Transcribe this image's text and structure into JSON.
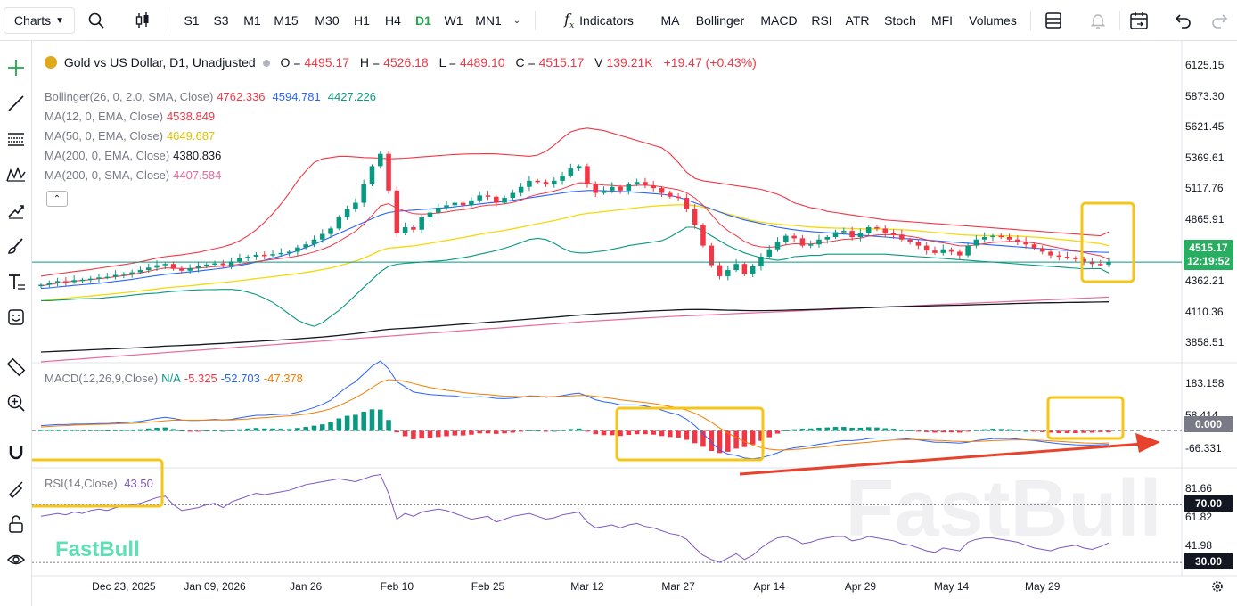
{
  "toolbar": {
    "charts_label": "Charts",
    "timeframes": [
      "S1",
      "S3",
      "M1",
      "M15",
      "M30",
      "H1",
      "H4",
      "D1",
      "W1",
      "MN1"
    ],
    "active_timeframe": "D1",
    "indicators_label": "Indicators",
    "indicator_shortcuts": [
      "MA",
      "Bollinger",
      "MACD",
      "RSI",
      "ATR",
      "Stoch",
      "MFI",
      "Volumes"
    ]
  },
  "symbol": {
    "title": "Gold vs US Dollar, D1, Unadjusted",
    "o_label": "O =",
    "o": "4495.17",
    "h_label": "H =",
    "h": "4526.18",
    "l_label": "L =",
    "l": "4489.10",
    "c_label": "C =",
    "c": "4515.17",
    "v_label": "V",
    "v": "139.21K",
    "change": "+19.47 (+0.43%)"
  },
  "indicators": [
    {
      "label": "Bollinger(26, 0, 2.0, SMA, Close)",
      "values": [
        "4762.336",
        "4594.781",
        "4427.226"
      ],
      "colors": [
        "#f23645",
        "#2962ff",
        "#089981"
      ]
    },
    {
      "label": "MA(12, 0, EMA, Close)",
      "values": [
        "4538.849"
      ],
      "colors": [
        "#f23645"
      ]
    },
    {
      "label": "MA(50, 0, EMA, Close)",
      "values": [
        "4649.687"
      ],
      "colors": [
        "#f5d90a"
      ]
    },
    {
      "label": "MA(200, 0, EMA, Close)",
      "values": [
        "4380.836"
      ],
      "colors": [
        "#131722"
      ]
    },
    {
      "label": "MA(200, 0, SMA, Close)",
      "values": [
        "4407.584"
      ],
      "colors": [
        "#e8699b"
      ]
    }
  ],
  "macd_legend": {
    "label": "MACD(12,26,9,Close)",
    "values": [
      "N/A",
      "-5.325",
      "-52.703",
      "-47.378"
    ],
    "colors": [
      "#089981",
      "#f23645",
      "#2962ff",
      "#f57c00"
    ]
  },
  "rsi_legend": {
    "label": "RSI(14,Close)",
    "value": "43.50"
  },
  "price_axis": [
    "6125.15",
    "5873.30",
    "5621.45",
    "5369.61",
    "5117.76",
    "4865.91",
    "4614.06",
    "4362.21",
    "4110.36",
    "3858.51"
  ],
  "price_tag": {
    "price": "4515.17",
    "time": "12:19:52"
  },
  "macd_axis": [
    "183.158",
    "58.414",
    "-66.331"
  ],
  "macd_tag": "0.000",
  "rsi_axis": [
    "81.66",
    "61.82",
    "41.98"
  ],
  "rsi_tags": [
    "70.00",
    "30.00"
  ],
  "date_axis": [
    "Dec 23, 2025",
    "Jan 09, 2026",
    "Jan 26",
    "Feb 10",
    "Feb 25",
    "Mar 12",
    "Mar 27",
    "Apr 14",
    "Apr 29",
    "May 14",
    "May 29"
  ],
  "watermark": "FastBull",
  "colors": {
    "up": "#089981",
    "down": "#f23645",
    "price_line": "#089981",
    "highlight": "#f5c518",
    "arrow": "#e8412c"
  },
  "chart_data": {
    "type": "candlestick",
    "title": "Gold vs US Dollar, D1, Unadjusted",
    "price_range": [
      3700,
      6250
    ],
    "macd_range": [
      -140,
      260
    ],
    "rsi_range": [
      22,
      95
    ],
    "close": [
      4330,
      4345,
      4360,
      4352,
      4368,
      4372,
      4380,
      4390,
      4395,
      4410,
      4420,
      4432,
      4450,
      4470,
      4490,
      4500,
      4460,
      4445,
      4465,
      4480,
      4495,
      4505,
      4490,
      4520,
      4545,
      4560,
      4575,
      4570,
      4580,
      4590,
      4600,
      4635,
      4660,
      4700,
      4745,
      4790,
      4880,
      4950,
      5000,
      5150,
      5300,
      5400,
      5100,
      4750,
      4800,
      4780,
      4880,
      4920,
      4960,
      4980,
      5000,
      4980,
      5020,
      5060,
      5050,
      5000,
      5040,
      5080,
      5130,
      5180,
      5170,
      5150,
      5180,
      5220,
      5280,
      5300,
      5150,
      5080,
      5100,
      5130,
      5100,
      5150,
      5170,
      5140,
      5120,
      5080,
      5050,
      5040,
      4950,
      4820,
      4650,
      4490,
      4400,
      4450,
      4500,
      4420,
      4480,
      4560,
      4620,
      4680,
      4730,
      4710,
      4650,
      4660,
      4700,
      4720,
      4760,
      4770,
      4720,
      4750,
      4800,
      4790,
      4750,
      4740,
      4700,
      4680,
      4650,
      4610,
      4590,
      4620,
      4600,
      4570,
      4650,
      4700,
      4720,
      4730,
      4720,
      4700,
      4680,
      4660,
      4630,
      4600,
      4570,
      4560,
      4550,
      4540,
      4520,
      4500,
      4495,
      4515
    ],
    "ema12": [
      4320,
      4332,
      4344,
      4352,
      4360,
      4366,
      4372,
      4380,
      4387,
      4396,
      4404,
      4414,
      4426,
      4440,
      4455,
      4468,
      4466,
      4462,
      4463,
      4466,
      4472,
      4479,
      4481,
      4488,
      4498,
      4509,
      4520,
      4528,
      4537,
      4545,
      4553,
      4565,
      4580,
      4598,
      4621,
      4647,
      4684,
      4725,
      4767,
      4825,
      4896,
      4974,
      4993,
      4955,
      4931,
      4911,
      4908,
      4910,
      4917,
      4925,
      4937,
      4943,
      4955,
      4971,
      4981,
      4983,
      4991,
      5003,
      5022,
      5049,
      5068,
      5081,
      5096,
      5115,
      5140,
      5164,
      5163,
      5151,
      5144,
      5142,
      5135,
      5137,
      5143,
      5143,
      5140,
      5130,
      5118,
      5107,
      5082,
      5040,
      4981,
      4905,
      4828,
      4772,
      4730,
      4684,
      4654,
      4640,
      4636,
      4642,
      4656,
      4665,
      4663,
      4664,
      4671,
      4679,
      4690,
      4702,
      4705,
      4712,
      4727,
      4737,
      4739,
      4740,
      4734,
      4725,
      4714,
      4698,
      4682,
      4673,
      4662,
      4648,
      4648,
      4656,
      4666,
      4676,
      4681,
      4685,
      4684,
      4680,
      4672,
      4661,
      4646,
      4632,
      4620,
      4608,
      4595,
      4580,
      4567,
      4538
    ],
    "ema50": [
      4200,
      4206,
      4213,
      4219,
      4226,
      4232,
      4238,
      4245,
      4251,
      4258,
      4265,
      4272,
      4280,
      4288,
      4296,
      4305,
      4311,
      4316,
      4322,
      4329,
      4336,
      4343,
      4349,
      4356,
      4364,
      4372,
      4381,
      4388,
      4396,
      4404,
      4412,
      4421,
      4431,
      4442,
      4454,
      4467,
      4484,
      4503,
      4523,
      4548,
      4578,
      4610,
      4630,
      4635,
      4642,
      4648,
      4658,
      4669,
      4681,
      4693,
      4705,
      4716,
      4729,
      4742,
      4754,
      4764,
      4775,
      4787,
      4800,
      4815,
      4829,
      4841,
      4855,
      4870,
      4886,
      4903,
      4913,
      4920,
      4928,
      4936,
      4943,
      4951,
      4960,
      4967,
      4973,
      4978,
      4981,
      4984,
      4983,
      4977,
      4964,
      4946,
      4926,
      4907,
      4891,
      4871,
      4854,
      4842,
      4832,
      4825,
      4820,
      4815,
      4808,
      4802,
      4798,
      4795,
      4793,
      4792,
      4789,
      4787,
      4787,
      4787,
      4785,
      4783,
      4780,
      4776,
      4771,
      4764,
      4757,
      4752,
      4746,
      4739,
      4735,
      4733,
      4732,
      4732,
      4731,
      4729,
      4727,
      4724,
      4720,
      4715,
      4709,
      4702,
      4696,
      4689,
      4682,
      4674,
      4666,
      4650
    ],
    "ema200": [
      3780,
      3783,
      3786,
      3789,
      3792,
      3795,
      3798,
      3801,
      3804,
      3807,
      3810,
      3813,
      3816,
      3820,
      3824,
      3828,
      3831,
      3834,
      3837,
      3840,
      3844,
      3848,
      3851,
      3855,
      3859,
      3863,
      3867,
      3871,
      3875,
      3879,
      3883,
      3888,
      3893,
      3898,
      3903,
      3909,
      3916,
      3923,
      3930,
      3939,
      3949,
      3959,
      3966,
      3970,
      3974,
      3978,
      3983,
      3988,
      3993,
      3998,
      4003,
      4008,
      4013,
      4018,
      4023,
      4028,
      4033,
      4038,
      4043,
      4049,
      4054,
      4059,
      4064,
      4070,
      4076,
      4082,
      4086,
      4090,
      4094,
      4098,
      4101,
      4105,
      4109,
      4113,
      4116,
      4119,
      4122,
      4125,
      4127,
      4128,
      4128,
      4126,
      4124,
      4122,
      4121,
      4119,
      4118,
      4118,
      4119,
      4120,
      4122,
      4124,
      4125,
      4127,
      4129,
      4131,
      4134,
      4136,
      4138,
      4140,
      4143,
      4146,
      4148,
      4150,
      4152,
      4154,
      4155,
      4157,
      4158,
      4160,
      4162,
      4163,
      4165,
      4167,
      4169,
      4171,
      4173,
      4175,
      4177,
      4179,
      4181,
      4182,
      4183,
      4184,
      4185,
      4186,
      4187,
      4188,
      4189,
      4190
    ],
    "sma200": [
      3700,
      3705,
      3710,
      3715,
      3720,
      3725,
      3730,
      3735,
      3740,
      3745,
      3750,
      3755,
      3760,
      3765,
      3770,
      3775,
      3780,
      3785,
      3790,
      3795,
      3800,
      3805,
      3810,
      3815,
      3820,
      3825,
      3830,
      3835,
      3840,
      3845,
      3850,
      3855,
      3860,
      3865,
      3870,
      3875,
      3880,
      3885,
      3890,
      3895,
      3900,
      3905,
      3910,
      3915,
      3920,
      3925,
      3930,
      3935,
      3940,
      3945,
      3950,
      3955,
      3960,
      3965,
      3970,
      3975,
      3980,
      3985,
      3990,
      3995,
      4000,
      4005,
      4010,
      4015,
      4020,
      4025,
      4030,
      4034,
      4038,
      4042,
      4046,
      4050,
      4054,
      4058,
      4062,
      4066,
      4070,
      4073,
      4076,
      4079,
      4082,
      4085,
      4088,
      4091,
      4094,
      4097,
      4100,
      4103,
      4106,
      4109,
      4112,
      4115,
      4118,
      4121,
      4124,
      4127,
      4130,
      4133,
      4136,
      4139,
      4142,
      4145,
      4148,
      4151,
      4154,
      4157,
      4160,
      4163,
      4166,
      4169,
      4172,
      4175,
      4178,
      4181,
      4184,
      4187,
      4190,
      4193,
      4196,
      4199,
      4202,
      4205,
      4208,
      4211,
      4214,
      4217,
      4220,
      4223,
      4226,
      4229
    ],
    "bb_upper": [
      4400,
      4410,
      4420,
      4428,
      4438,
      4445,
      4455,
      4465,
      4475,
      4485,
      4495,
      4505,
      4518,
      4532,
      4548,
      4560,
      4568,
      4575,
      4585,
      4595,
      4610,
      4625,
      4640,
      4660,
      4690,
      4730,
      4780,
      4840,
      4910,
      4990,
      5080,
      5180,
      5260,
      5330,
      5360,
      5370,
      5380,
      5380,
      5375,
      5370,
      5368,
      5365,
      5360,
      5362,
      5365,
      5370,
      5375,
      5380,
      5385,
      5390,
      5395,
      5398,
      5400,
      5400,
      5402,
      5400,
      5395,
      5390,
      5385,
      5380,
      5390,
      5420,
      5470,
      5530,
      5580,
      5600,
      5610,
      5600,
      5590,
      5570,
      5550,
      5530,
      5510,
      5490,
      5470,
      5450,
      5400,
      5330,
      5250,
      5200,
      5180,
      5170,
      5160,
      5150,
      5140,
      5130,
      5120,
      5110,
      5090,
      5070,
      5040,
      5000,
      4980,
      4960,
      4950,
      4930,
      4920,
      4910,
      4900,
      4890,
      4880,
      4870,
      4860,
      4855,
      4850,
      4845,
      4840,
      4835,
      4830,
      4825,
      4820,
      4815,
      4810,
      4805,
      4800,
      4795,
      4790,
      4785,
      4780,
      4775,
      4770,
      4765,
      4760,
      4755,
      4750,
      4745,
      4740,
      4735,
      4730,
      4762
    ],
    "bb_mid": [
      4300,
      4305,
      4312,
      4318,
      4325,
      4330,
      4336,
      4342,
      4350,
      4358,
      4366,
      4375,
      4385,
      4395,
      4405,
      4415,
      4422,
      4428,
      4435,
      4442,
      4450,
      4458,
      4466,
      4476,
      4488,
      4500,
      4515,
      4530,
      4548,
      4565,
      4585,
      4610,
      4635,
      4660,
      4690,
      4720,
      4750,
      4780,
      4810,
      4840,
      4870,
      4900,
      4920,
      4930,
      4935,
      4940,
      4945,
      4950,
      4955,
      4960,
      4968,
      4975,
      4982,
      4990,
      4998,
      5005,
      5012,
      5020,
      5030,
      5040,
      5050,
      5060,
      5070,
      5080,
      5090,
      5095,
      5100,
      5100,
      5098,
      5095,
      5092,
      5090,
      5085,
      5080,
      5075,
      5070,
      5060,
      5045,
      5025,
      5000,
      4975,
      4950,
      4925,
      4900,
      4880,
      4860,
      4845,
      4830,
      4815,
      4800,
      4790,
      4780,
      4772,
      4765,
      4760,
      4755,
      4750,
      4745,
      4740,
      4735,
      4730,
      4725,
      4720,
      4715,
      4710,
      4705,
      4700,
      4695,
      4690,
      4685,
      4680,
      4675,
      4670,
      4665,
      4660,
      4655,
      4650,
      4645,
      4640,
      4635,
      4630,
      4625,
      4620,
      4615,
      4610,
      4605,
      4600,
      4598,
      4596,
      4595
    ],
    "bb_lower": [
      4200,
      4200,
      4204,
      4208,
      4212,
      4215,
      4217,
      4219,
      4225,
      4231,
      4237,
      4245,
      4252,
      4258,
      4262,
      4270,
      4276,
      4281,
      4285,
      4289,
      4290,
      4291,
      4292,
      4292,
      4286,
      4270,
      4250,
      4220,
      4186,
      4140,
      4090,
      4040,
      4010,
      3990,
      4020,
      4070,
      4120,
      4180,
      4245,
      4310,
      4372,
      4435,
      4480,
      4498,
      4505,
      4510,
      4515,
      4520,
      4525,
      4530,
      4541,
      4552,
      4564,
      4580,
      4594,
      4610,
      4629,
      4650,
      4675,
      4700,
      4710,
      4700,
      4670,
      4630,
      4600,
      4590,
      4590,
      4600,
      4606,
      4620,
      4634,
      4650,
      4660,
      4670,
      4680,
      4690,
      4720,
      4760,
      4800,
      4800,
      4770,
      4730,
      4690,
      4650,
      4620,
      4590,
      4570,
      4550,
      4540,
      4530,
      4540,
      4560,
      4564,
      4570,
      4570,
      4580,
      4580,
      4580,
      4580,
      4580,
      4580,
      4580,
      4580,
      4575,
      4570,
      4565,
      4560,
      4555,
      4550,
      4545,
      4540,
      4535,
      4530,
      4525,
      4520,
      4515,
      4510,
      4505,
      4500,
      4495,
      4490,
      4485,
      4480,
      4475,
      4470,
      4465,
      4460,
      4461,
      4462,
      4427
    ],
    "macd": [
      20,
      22,
      24,
      24,
      26,
      26,
      27,
      28,
      28,
      30,
      32,
      34,
      37,
      42,
      48,
      52,
      48,
      42,
      40,
      40,
      42,
      44,
      42,
      44,
      50,
      55,
      60,
      60,
      62,
      64,
      65,
      72,
      80,
      90,
      102,
      118,
      145,
      170,
      190,
      220,
      250,
      270,
      240,
      190,
      170,
      150,
      145,
      140,
      138,
      136,
      135,
      130,
      130,
      132,
      130,
      125,
      124,
      126,
      130,
      135,
      134,
      130,
      132,
      136,
      142,
      146,
      134,
      120,
      112,
      108,
      100,
      100,
      100,
      96,
      90,
      80,
      70,
      62,
      45,
      20,
      -10,
      -45,
      -75,
      -90,
      -95,
      -105,
      -108,
      -104,
      -96,
      -85,
      -72,
      -66,
      -62,
      -58,
      -52,
      -48,
      -42,
      -38,
      -38,
      -35,
      -30,
      -28,
      -28,
      -28,
      -30,
      -32,
      -35,
      -40,
      -44,
      -44,
      -46,
      -48,
      -44,
      -38,
      -34,
      -30,
      -30,
      -30,
      -32,
      -35,
      -38,
      -42,
      -46,
      -50,
      -52,
      -54,
      -55,
      -55,
      -54,
      -53
    ],
    "signal": [
      15,
      17,
      19,
      20,
      22,
      23,
      24,
      25,
      26,
      27,
      28,
      29,
      31,
      33,
      36,
      39,
      41,
      41,
      41,
      41,
      41,
      42,
      42,
      42,
      44,
      46,
      49,
      51,
      53,
      56,
      58,
      61,
      65,
      70,
      77,
      85,
      97,
      112,
      128,
      146,
      167,
      188,
      198,
      196,
      191,
      183,
      175,
      168,
      162,
      157,
      153,
      148,
      145,
      142,
      140,
      137,
      134,
      133,
      132,
      133,
      133,
      132,
      132,
      133,
      135,
      137,
      137,
      133,
      129,
      125,
      120,
      116,
      113,
      109,
      105,
      100,
      94,
      88,
      80,
      68,
      52,
      33,
      11,
      -9,
      -26,
      -42,
      -55,
      -65,
      -71,
      -74,
      -74,
      -72,
      -70,
      -67,
      -64,
      -61,
      -57,
      -53,
      -50,
      -47,
      -44,
      -41,
      -38,
      -36,
      -35,
      -34,
      -34,
      -35,
      -37,
      -38,
      -40,
      -41,
      -42,
      -41,
      -40,
      -38,
      -37,
      -36,
      -35,
      -35,
      -36,
      -37,
      -39,
      -41,
      -43,
      -45,
      -47,
      -48,
      -49,
      -47
    ],
    "rsi": [
      62,
      63,
      64,
      63,
      65,
      64,
      66,
      67,
      66,
      68,
      69,
      70,
      71,
      73,
      75,
      76,
      70,
      66,
      67,
      68,
      70,
      71,
      68,
      72,
      74,
      76,
      78,
      77,
      78,
      79,
      80,
      82,
      84,
      85,
      86,
      87,
      88,
      87,
      86,
      88,
      90,
      91,
      78,
      60,
      64,
      62,
      65,
      66,
      67,
      66,
      64,
      62,
      60,
      61,
      62,
      58,
      60,
      62,
      63,
      64,
      62,
      60,
      61,
      63,
      64,
      65,
      58,
      54,
      55,
      56,
      54,
      56,
      57,
      55,
      54,
      52,
      50,
      49,
      46,
      40,
      35,
      32,
      30,
      33,
      36,
      32,
      35,
      40,
      44,
      47,
      48,
      46,
      43,
      44,
      46,
      47,
      48,
      48,
      45,
      46,
      48,
      47,
      46,
      45,
      43,
      42,
      40,
      38,
      37,
      40,
      39,
      38,
      44,
      46,
      47,
      47,
      46,
      45,
      44,
      42,
      40,
      39,
      38,
      40,
      41,
      42,
      40,
      39,
      41,
      43.5
    ]
  }
}
